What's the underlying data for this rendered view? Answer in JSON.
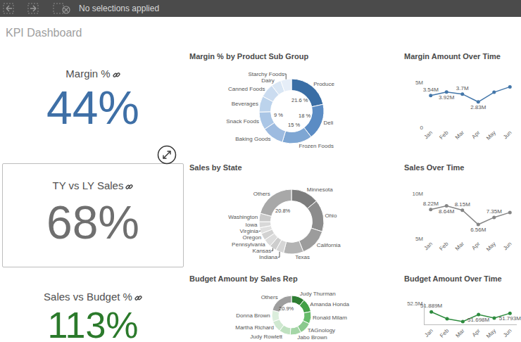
{
  "header": {
    "toolbar_text": "No selections applied",
    "title": "KPI Dashboard"
  },
  "kpis": [
    {
      "title": "Margin %",
      "value": "44%",
      "color": "#3e6fa6"
    },
    {
      "title": "TY vs LY Sales",
      "value": "68%",
      "color": "#6f6f6f"
    },
    {
      "title": "Sales vs Budget %",
      "value": "113%",
      "color": "#2b7a2b"
    }
  ],
  "chart_data": [
    {
      "type": "pie",
      "title": "Margin % by Product Sub Group",
      "categories": [
        "Produce",
        "Deli",
        "Frozen Foods",
        "Baking Goods",
        "Snack Foods",
        "Beverages",
        "Canned Foods",
        "Dairy",
        "Starchy Foods"
      ],
      "values": [
        21.6,
        18,
        15,
        11,
        9,
        8,
        7,
        5,
        5.4
      ],
      "value_labels": [
        "21.6 %",
        "18 %",
        "15 %",
        null,
        "9 %",
        null,
        null,
        null,
        null
      ],
      "data_labels": true,
      "colors": [
        "#3a6ea5",
        "#5b8cc4",
        "#7ea6d3",
        "#9dbbe0",
        "#aac6e6",
        "#bcd3ec",
        "#cbdcf0",
        "#d9e6f4",
        "#e6eef8"
      ]
    },
    {
      "type": "line",
      "title": "Margin Amount Over Time",
      "categories": [
        "Jan",
        "Feb",
        "Mar",
        "Apr",
        "May",
        "Jun"
      ],
      "values": [
        3540000,
        3920000,
        3700000,
        2830000,
        3900000,
        4500000
      ],
      "value_labels": [
        "3.54M",
        "3.92M",
        "3.7M",
        "2.83M",
        null,
        null
      ],
      "data_labels": true,
      "color": "#4477aa",
      "marker": "circle",
      "ylim": [
        0,
        5000000
      ],
      "yticks": [
        0,
        {
          "value": 5000000,
          "label": "5M"
        }
      ],
      "grid": true
    },
    {
      "type": "pie",
      "title": "Sales by State",
      "categories": [
        "Minnesota",
        "Ohio",
        "California",
        "Texas",
        "Indiana",
        "Kansas",
        "Pennsylvania",
        "Oregon",
        "Virginia",
        "Iowa",
        "Washington",
        "Others"
      ],
      "values": [
        14,
        16,
        14,
        10,
        4,
        3.5,
        4,
        3.5,
        3,
        3,
        4.2,
        20.8
      ],
      "value_labels": [
        null,
        null,
        null,
        null,
        null,
        null,
        null,
        null,
        null,
        null,
        null,
        "20.8%"
      ],
      "data_labels": true,
      "colors": [
        "#7d7d7d",
        "#8c8c8c",
        "#9c9c9c",
        "#b3b3b3",
        "#d6d6d6",
        "#cdcdcd",
        "#dcdcdc",
        "#d2d2d2",
        "#e0e0e0",
        "#d8d8d8",
        "#cacaca",
        "#a8a8a8"
      ]
    },
    {
      "type": "line",
      "title": "Sales Over Time",
      "categories": [
        "Jan",
        "Feb",
        "Mar",
        "Apr",
        "May",
        "Jun"
      ],
      "values": [
        8220000,
        8640000,
        8150000,
        6560000,
        7350000,
        7900000
      ],
      "value_labels": [
        "8.22M",
        "8.64M",
        "8.15M",
        "6.56M",
        "7.35M",
        null
      ],
      "data_labels": true,
      "color": "#858585",
      "marker": "circle",
      "ylim": [
        5000000,
        10000000
      ],
      "yticks": [
        {
          "value": 5000000,
          "label": "5M"
        },
        {
          "value": 10000000,
          "label": "10M"
        }
      ],
      "grid": true
    },
    {
      "type": "pie",
      "title": "Budget Amount by Sales Rep",
      "categories": [
        "Judy Thurman",
        "Amanda Honda",
        "Ronald Milam",
        "TAGnology",
        "Jabo Brown",
        "Judy Rowlett",
        "Martha Richard",
        "Donna Brown",
        "Others"
      ],
      "values": [
        11,
        11,
        10,
        10,
        9,
        9.5,
        9.3,
        9.3,
        20.9
      ],
      "value_labels": [
        null,
        null,
        null,
        null,
        null,
        null,
        null,
        null,
        "20.9%"
      ],
      "data_labels": true,
      "colors": [
        "#2e7d32",
        "#43a047",
        "#66bb6a",
        "#8bc98e",
        "#a5d6a7",
        "#bfe1c0",
        "#cfe8d0",
        "#dbeedc",
        "#9e9e9e"
      ]
    },
    {
      "type": "line",
      "title": "Budget Amount Over Time",
      "categories": [
        "Jan",
        "Feb",
        "Mar",
        "Apr",
        "May",
        "Jun"
      ],
      "values": [
        51889000,
        51400000,
        51200000,
        51698000,
        51450000,
        51793000
      ],
      "value_labels": [
        "51.889M",
        null,
        null,
        "51.698M",
        null,
        "51.793M"
      ],
      "data_labels": true,
      "color": "#2e8b3e",
      "marker": "circle",
      "ylim": [
        51000000,
        52500000
      ],
      "yticks": [
        {
          "value": 52500000,
          "label": "52.5M"
        }
      ],
      "grid": true
    }
  ]
}
